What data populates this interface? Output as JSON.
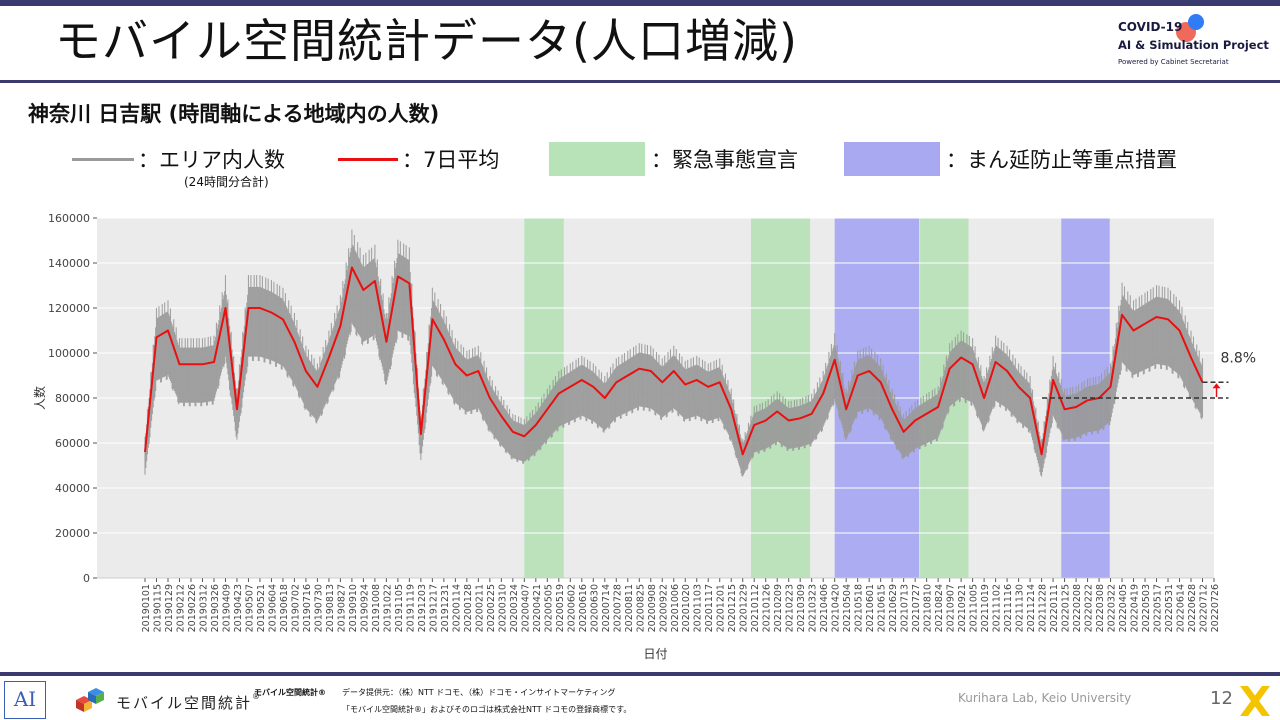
{
  "slide": {
    "title": "モバイル空間統計データ(人口増減)",
    "subtitle": "神奈川 日吉駅 (時間軸による地域内の人数)",
    "page_number": "12"
  },
  "logo": {
    "line1": "COVID-19",
    "line2": "AI & Simulation Project",
    "line3": "Powered by Cabinet Secretariat"
  },
  "legend": {
    "raw_label": "：エリア内人数",
    "raw_note": "(24時間分合計)",
    "avg_label": "：7日平均",
    "emergency_label": "：緊急事態宣言",
    "priority_label": "：まん延防止等重点措置"
  },
  "colors": {
    "raw": "#9a9a9a",
    "avg": "#e81010",
    "emergency": "#b8e2b8",
    "priority": "#a9a9f2",
    "plot_bg": "#ebebeb",
    "frame": "#3b3a6e"
  },
  "chart_data": {
    "type": "line",
    "xlabel": "日付",
    "ylabel": "人数",
    "ylim": [
      0,
      160000
    ],
    "y_ticks": [
      "0",
      "20000",
      "40000",
      "60000",
      "80000",
      "100000",
      "120000",
      "140000",
      "160000"
    ],
    "x_tick_labels": [
      "20190101",
      "20190115",
      "20190129",
      "20190212",
      "20190226",
      "20190312",
      "20190326",
      "20190409",
      "20190423",
      "20190507",
      "20190521",
      "20190604",
      "20190618",
      "20190702",
      "20190716",
      "20190730",
      "20190813",
      "20190827",
      "20190910",
      "20190924",
      "20191008",
      "20191022",
      "20191105",
      "20191119",
      "20191203",
      "20191217",
      "20191231",
      "20200114",
      "20200128",
      "20200211",
      "20200225",
      "20200310",
      "20200324",
      "20200407",
      "20200421",
      "20200505",
      "20200519",
      "20200602",
      "20200616",
      "20200630",
      "20200714",
      "20200728",
      "20200811",
      "20200825",
      "20200908",
      "20200922",
      "20201006",
      "20201020",
      "20201103",
      "20201117",
      "20201201",
      "20201215",
      "20201229",
      "20210112",
      "20210126",
      "20210209",
      "20210223",
      "20210309",
      "20210323",
      "20210406",
      "20210420",
      "20210504",
      "20210518",
      "20210601",
      "20210615",
      "20210629",
      "20210713",
      "20210727",
      "20210810",
      "20210824",
      "20210907",
      "20210921",
      "20211005",
      "20211019",
      "20211102",
      "20211116",
      "20211130",
      "20211214",
      "20211228",
      "20220111",
      "20220125",
      "20220208",
      "20220222",
      "20220308",
      "20220322",
      "20220405",
      "20220419",
      "20220503",
      "20220517",
      "20220531",
      "20220614",
      "20220628",
      "20220712",
      "20220726"
    ],
    "avg_series_name": "7日平均",
    "avg_biweekly": [
      56000,
      107000,
      110000,
      95000,
      95000,
      95000,
      96000,
      120000,
      75000,
      120000,
      120000,
      118000,
      115000,
      105000,
      92000,
      85000,
      98000,
      112000,
      138000,
      128000,
      132000,
      105000,
      134000,
      131000,
      64000,
      115000,
      106000,
      95000,
      90000,
      92000,
      80000,
      72000,
      65000,
      63000,
      68000,
      75000,
      82000,
      85000,
      88000,
      85000,
      80000,
      87000,
      90000,
      93000,
      92000,
      87000,
      92000,
      86000,
      88000,
      85000,
      87000,
      75000,
      55000,
      68000,
      70000,
      74000,
      70000,
      71000,
      73000,
      82000,
      97000,
      75000,
      90000,
      92000,
      87000,
      75000,
      65000,
      70000,
      73000,
      76000,
      93000,
      98000,
      95000,
      80000,
      96000,
      92000,
      85000,
      80000,
      55000,
      88000,
      75000,
      76000,
      79000,
      80000,
      85000,
      117000,
      110000,
      113000,
      116000,
      115000,
      110000,
      98000,
      87000
    ],
    "band_series_name": "エリア内人数",
    "band_low_pct": 0.82,
    "band_high_pct": 1.1,
    "emergency_periods": [
      [
        "20200407",
        "20200525"
      ],
      [
        "20210108",
        "20210321"
      ],
      [
        "20210802",
        "20210930"
      ]
    ],
    "priority_periods": [
      [
        "20210420",
        "20210801"
      ],
      [
        "20220121",
        "20220321"
      ]
    ],
    "annotation": {
      "text": "8.8%",
      "from_value": 80000,
      "to_value": 87000,
      "end_value": 87000
    }
  },
  "footer": {
    "ai_mark": "AI",
    "brand": "モバイル空間統計",
    "brand_reg": "®",
    "t1": "モバイル空間統計®",
    "t2": "データ提供元：（株）NTT ドコモ、（株）ドコモ・インサイトマーケティング",
    "t3": "「モバイル空間統計®」およびそのロゴは株式会社NTT ドコモの登録商標です。",
    "lab": "Kurihara Lab, Keio University"
  }
}
